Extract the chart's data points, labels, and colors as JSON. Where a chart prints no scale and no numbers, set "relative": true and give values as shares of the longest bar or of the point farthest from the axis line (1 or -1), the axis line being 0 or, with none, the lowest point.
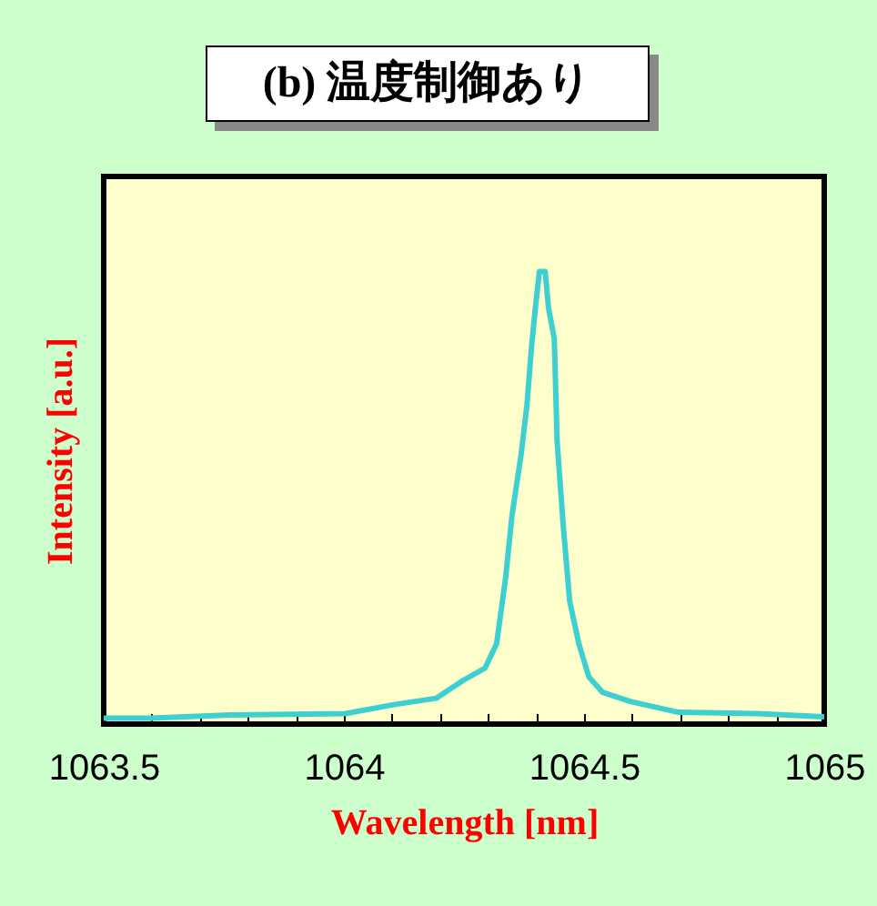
{
  "chart_data": {
    "type": "line",
    "title": "(b) 温度制御あり",
    "xlabel": "Wavelength [nm]",
    "ylabel": "Intensity [a.u.]",
    "relative": true,
    "xlim": [
      1063.5,
      1065
    ],
    "xticks": [
      1063.5,
      {
        "value": 1063.6,
        "label": null
      },
      {
        "value": 1063.7,
        "label": null
      },
      {
        "value": 1063.8,
        "label": null
      },
      {
        "value": 1063.9,
        "label": null
      },
      1064,
      {
        "value": 1064.1,
        "label": null
      },
      {
        "value": 1064.2,
        "label": null
      },
      {
        "value": 1064.3,
        "label": null
      },
      {
        "value": 1064.4,
        "label": null
      },
      1064.5,
      {
        "value": 1064.6,
        "label": null
      },
      {
        "value": 1064.7,
        "label": null
      },
      {
        "value": 1064.8,
        "label": null
      },
      {
        "value": 1064.9,
        "label": null
      },
      1065
    ],
    "grid": false,
    "legend": false,
    "marker": "none",
    "line_style": "solid",
    "series": [
      {
        "color": "#3ecfd0",
        "x": [
          1063.5,
          1063.598,
          1063.763,
          1064.003,
          1064.104,
          1064.192,
          1064.249,
          1064.294,
          1064.318,
          1064.337,
          1064.35,
          1064.369,
          1064.381,
          1064.391,
          1064.4,
          1064.407,
          1064.419,
          1064.426,
          1064.438,
          1064.444,
          1064.457,
          1064.47,
          1064.489,
          1064.51,
          1064.539,
          1064.596,
          1064.697,
          1064.861,
          1065.0
        ],
        "values": [
          0.013,
          0.013,
          0.02,
          0.023,
          0.043,
          0.057,
          0.097,
          0.124,
          0.178,
          0.326,
          0.461,
          0.596,
          0.704,
          0.838,
          0.933,
          1.0,
          1.0,
          0.919,
          0.852,
          0.623,
          0.434,
          0.272,
          0.178,
          0.104,
          0.07,
          0.05,
          0.026,
          0.023,
          0.016
        ]
      }
    ]
  }
}
